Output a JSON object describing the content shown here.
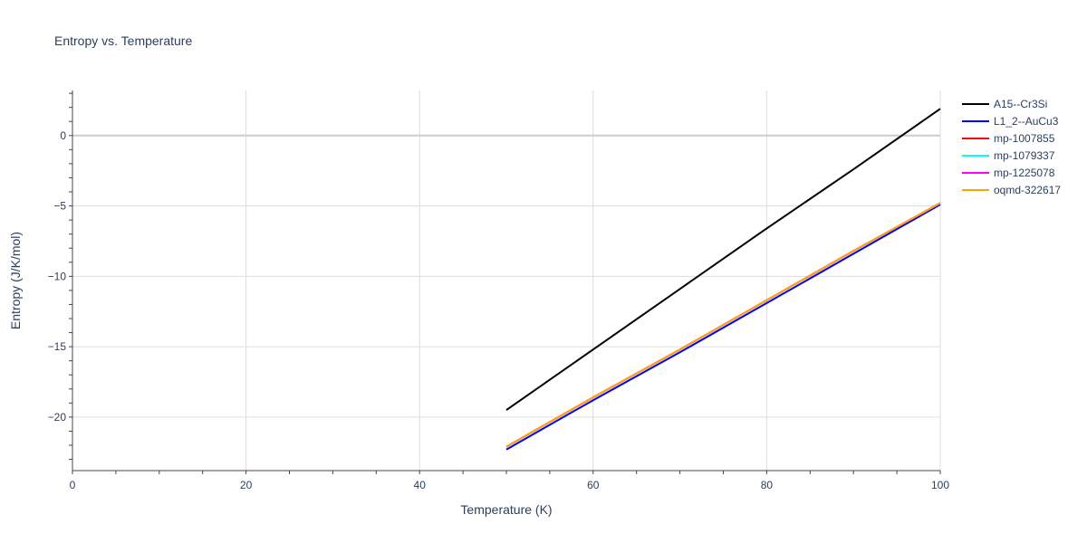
{
  "chart_data": {
    "type": "line",
    "title": "Entropy vs. Temperature",
    "xlabel": "Temperature (K)",
    "ylabel": "Entropy (J/K/mol)",
    "xlim": [
      0,
      100
    ],
    "ylim": [
      -23.8,
      3.2
    ],
    "x_ticks": [
      0,
      20,
      40,
      60,
      80,
      100
    ],
    "y_ticks": [
      0,
      -5,
      -10,
      -15,
      -20
    ],
    "y_tick_labels": [
      "0",
      "−5",
      "−10",
      "−15",
      "−20"
    ],
    "grid": true,
    "legend_position": "right",
    "series": [
      {
        "name": "A15--Cr3Si",
        "color": "#000000",
        "x": [
          50,
          60,
          70,
          80,
          90,
          100
        ],
        "y": [
          -19.5,
          -15.2,
          -10.9,
          -6.6,
          -2.4,
          1.9
        ]
      },
      {
        "name": "L1_2--AuCu3",
        "color": "#0000ff",
        "x": [
          50,
          60,
          70,
          80,
          90,
          100
        ],
        "y": [
          -22.3,
          -18.8,
          -15.4,
          -11.9,
          -8.4,
          -4.9
        ]
      },
      {
        "name": "mp-1007855",
        "color": "#ff0000",
        "x": [
          50,
          60,
          70,
          80,
          90,
          100
        ],
        "y": [
          -22.1,
          -18.6,
          -15.2,
          -11.7,
          -8.2,
          -4.8
        ]
      },
      {
        "name": "mp-1079337",
        "color": "#00ffff",
        "x": [
          50,
          60,
          70,
          80,
          90,
          100
        ],
        "y": [
          -22.1,
          -18.6,
          -15.2,
          -11.7,
          -8.2,
          -4.8
        ]
      },
      {
        "name": "mp-1225078",
        "color": "#ff00ff",
        "x": [
          50,
          60,
          70,
          80,
          90,
          100
        ],
        "y": [
          -22.1,
          -18.6,
          -15.2,
          -11.7,
          -8.2,
          -4.8
        ]
      },
      {
        "name": "oqmd-322617",
        "color": "#ffa500",
        "x": [
          50,
          60,
          70,
          80,
          90,
          100
        ],
        "y": [
          -22.1,
          -18.6,
          -15.2,
          -11.7,
          -8.2,
          -4.8
        ]
      }
    ]
  }
}
